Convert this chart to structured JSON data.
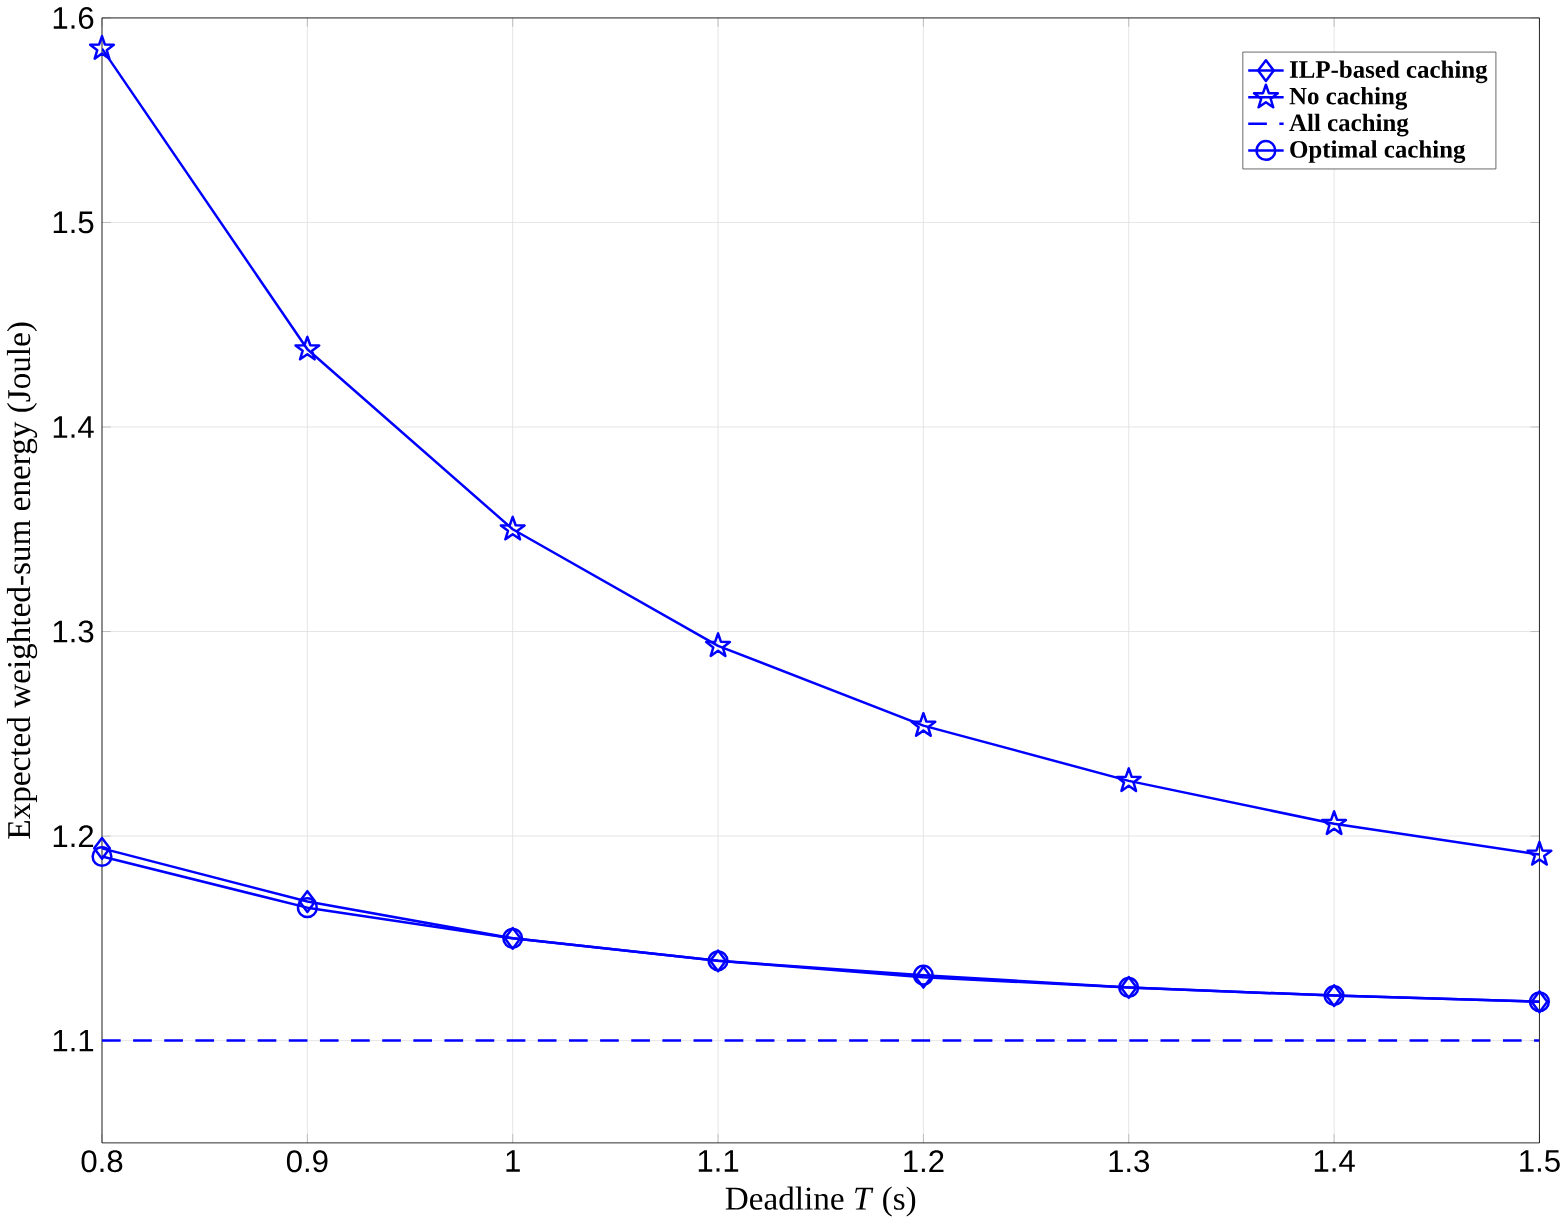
{
  "chart_data": {
    "type": "line",
    "xlabel": "Deadline *T* (s)",
    "ylabel": "Expected weighted-sum energy (Joule)",
    "x": [
      0.8,
      0.9,
      1.0,
      1.1,
      1.2,
      1.3,
      1.4,
      1.5
    ],
    "xlim": [
      0.8,
      1.5
    ],
    "xticks": [
      0.8,
      0.9,
      1,
      1.1,
      1.2,
      1.3,
      1.4,
      1.5
    ],
    "ylim": [
      1.05,
      1.6
    ],
    "yticks": [
      1.1,
      1.2,
      1.3,
      1.4,
      1.5,
      1.6
    ],
    "grid": true,
    "legend": "top right",
    "series": [
      {
        "name": "ILP-based caching",
        "color": "#0000ff",
        "marker": "diamond",
        "line_style": "solid",
        "values": [
          1.194,
          1.168,
          1.15,
          1.139,
          1.131,
          1.126,
          1.122,
          1.119
        ]
      },
      {
        "name": "No caching",
        "color": "#0000ff",
        "marker": "star",
        "line_style": "solid",
        "values": [
          1.585,
          1.438,
          1.35,
          1.293,
          1.254,
          1.227,
          1.206,
          1.191
        ]
      },
      {
        "name": "All caching",
        "color": "#0000ff",
        "marker": "none",
        "line_style": "dashed",
        "values": [
          1.1,
          1.1,
          1.1,
          1.1,
          1.1,
          1.1,
          1.1,
          1.1
        ]
      },
      {
        "name": "Optimal caching",
        "color": "#0000ff",
        "marker": "circle",
        "line_style": "solid",
        "values": [
          1.19,
          1.165,
          1.15,
          1.139,
          1.132,
          1.126,
          1.122,
          1.119
        ]
      }
    ]
  }
}
